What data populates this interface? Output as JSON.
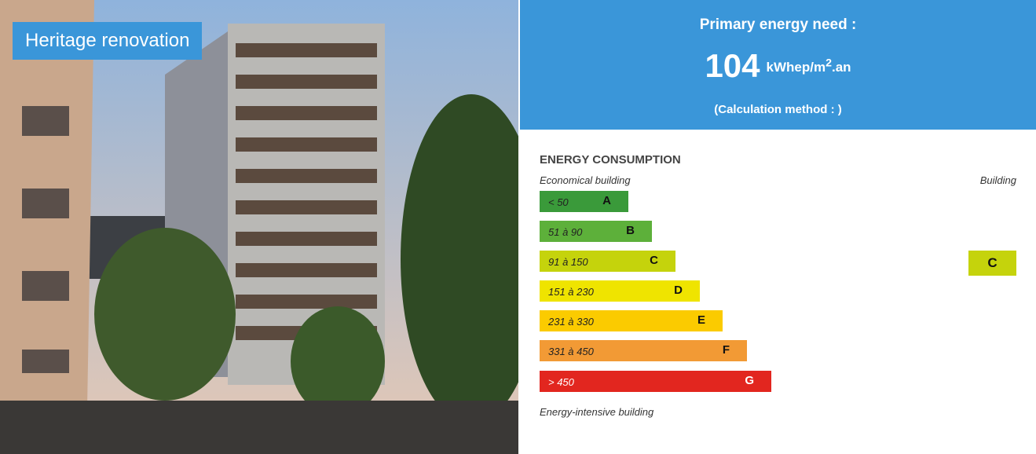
{
  "photo": {
    "badge": "Heritage renovation"
  },
  "panel": {
    "title": "Primary energy need :",
    "value": 104,
    "unit_base": "kWhep/m",
    "unit_sup": "2",
    "unit_tail": ".an",
    "method": "(Calculation method : )"
  },
  "consumption": {
    "heading": "ENERGY CONSUMPTION",
    "top_left": "Economical building",
    "top_right": "Building",
    "bottom": "Energy-intensive building",
    "ratings": [
      {
        "range": "< 50",
        "letter": "A",
        "color": "#3a9a3a"
      },
      {
        "range": "51 à 90",
        "letter": "B",
        "color": "#5db03a"
      },
      {
        "range": "91 à 150",
        "letter": "C",
        "color": "#c5d30c"
      },
      {
        "range": "151 à 230",
        "letter": "D",
        "color": "#efe400"
      },
      {
        "range": "231 à 330",
        "letter": "E",
        "color": "#fbcb00"
      },
      {
        "range": "331 à 450",
        "letter": "F",
        "color": "#f29a35"
      },
      {
        "range": "> 450",
        "letter": "G",
        "color": "#e2261f"
      }
    ],
    "building_rating": 2
  }
}
